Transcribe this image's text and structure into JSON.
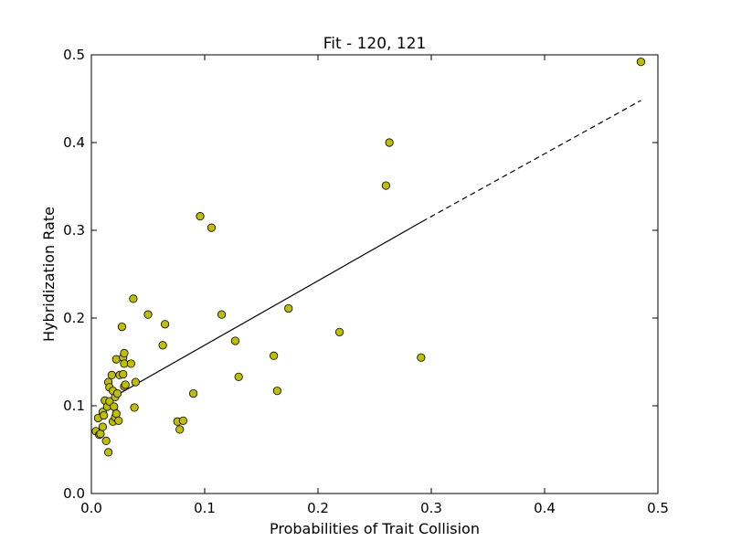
{
  "chart_data": {
    "type": "scatter",
    "title": "Fit - 120, 121",
    "xlabel": "Probabilities of Trait Collision",
    "ylabel": "Hybridization Rate",
    "xlim": [
      0,
      0.5
    ],
    "ylim": [
      0,
      0.5
    ],
    "xticks": [
      0.0,
      0.1,
      0.2,
      0.3,
      0.4,
      0.5
    ],
    "yticks": [
      0.0,
      0.1,
      0.2,
      0.3,
      0.4,
      0.5
    ],
    "xtick_labels": [
      "0.0",
      "0.1",
      "0.2",
      "0.3",
      "0.4",
      "0.5"
    ],
    "ytick_labels": [
      "0.0",
      "0.1",
      "0.2",
      "0.3",
      "0.4",
      "0.5"
    ],
    "grid": false,
    "colors": {
      "marker_fill": "#bfbf00",
      "marker_edge": "#000000",
      "fit_line": "#000000"
    },
    "series": [
      {
        "kind": "points",
        "x": [
          0.004,
          0.006,
          0.007,
          0.008,
          0.01,
          0.01,
          0.011,
          0.012,
          0.013,
          0.014,
          0.015,
          0.015,
          0.016,
          0.016,
          0.018,
          0.019,
          0.019,
          0.02,
          0.021,
          0.021,
          0.022,
          0.022,
          0.023,
          0.024,
          0.025,
          0.027,
          0.028,
          0.028,
          0.029,
          0.029,
          0.029,
          0.03,
          0.035,
          0.037,
          0.038,
          0.039,
          0.05,
          0.063,
          0.065,
          0.076,
          0.078,
          0.081,
          0.09,
          0.096,
          0.106,
          0.115,
          0.127,
          0.13,
          0.161,
          0.164,
          0.174,
          0.219,
          0.26,
          0.263,
          0.291,
          0.485
        ],
        "y": [
          0.071,
          0.086,
          0.067,
          0.068,
          0.093,
          0.076,
          0.089,
          0.106,
          0.06,
          0.099,
          0.047,
          0.127,
          0.105,
          0.121,
          0.135,
          0.117,
          0.082,
          0.099,
          0.11,
          0.087,
          0.091,
          0.153,
          0.114,
          0.083,
          0.135,
          0.19,
          0.136,
          0.155,
          0.16,
          0.122,
          0.148,
          0.124,
          0.148,
          0.222,
          0.098,
          0.127,
          0.204,
          0.169,
          0.193,
          0.082,
          0.073,
          0.083,
          0.114,
          0.316,
          0.303,
          0.204,
          0.174,
          0.133,
          0.157,
          0.117,
          0.211,
          0.184,
          0.351,
          0.4,
          0.155,
          0.492
        ]
      },
      {
        "kind": "fit-solid",
        "x": [
          0.01,
          0.292
        ],
        "y": [
          0.103,
          0.31
        ]
      },
      {
        "kind": "fit-dashed",
        "x": [
          0.292,
          0.485
        ],
        "y": [
          0.31,
          0.448
        ]
      }
    ]
  }
}
